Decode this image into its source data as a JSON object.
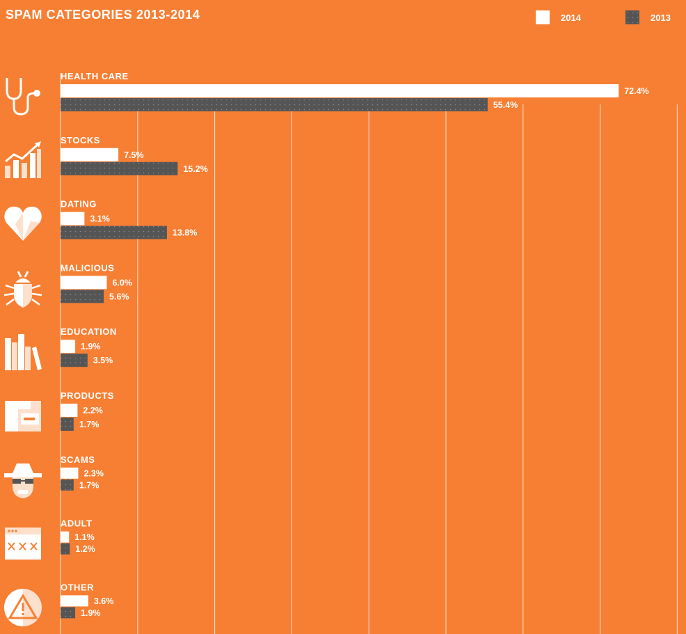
{
  "chart_data": {
    "type": "bar",
    "orientation": "horizontal",
    "title": "SPAM CATEGORIES 2013-2014",
    "legend_placement": "top-right",
    "xlim": [
      0,
      80
    ],
    "grid": true,
    "categories": [
      "HEALTH CARE",
      "STOCKS",
      "DATING",
      "MALICIOUS",
      "EDUCATION",
      "PRODUCTS",
      "SCAMS",
      "ADULT",
      "OTHER"
    ],
    "series": [
      {
        "name": "2014",
        "color": "#ffffff",
        "values": [
          72.4,
          7.5,
          3.1,
          6.0,
          1.9,
          2.2,
          2.3,
          1.1,
          3.6
        ],
        "labels": [
          "72.4%",
          "7.5%",
          "3.1%",
          "6.0%",
          "1.9%",
          "2.2%",
          "2.3%",
          "1.1%",
          "3.6%"
        ]
      },
      {
        "name": "2013",
        "color": "#555555",
        "values": [
          55.4,
          15.2,
          13.8,
          5.6,
          3.5,
          1.7,
          1.7,
          1.2,
          1.9
        ],
        "labels": [
          "55.4%",
          "15.2%",
          "13.8%",
          "5.6%",
          "3.5%",
          "1.7%",
          "1.7%",
          "1.2%",
          "1.9%"
        ]
      }
    ]
  },
  "icons": [
    "stethoscope-icon",
    "stock-chart-icon",
    "heart-icon",
    "bug-icon",
    "books-icon",
    "package-icon",
    "spy-icon",
    "browser-xxx-icon",
    "warning-icon"
  ],
  "colors": {
    "background": "#f77f33",
    "bar_2014": "#ffffff",
    "bar_2013": "#555555",
    "gridline": "#fbd3b8"
  }
}
